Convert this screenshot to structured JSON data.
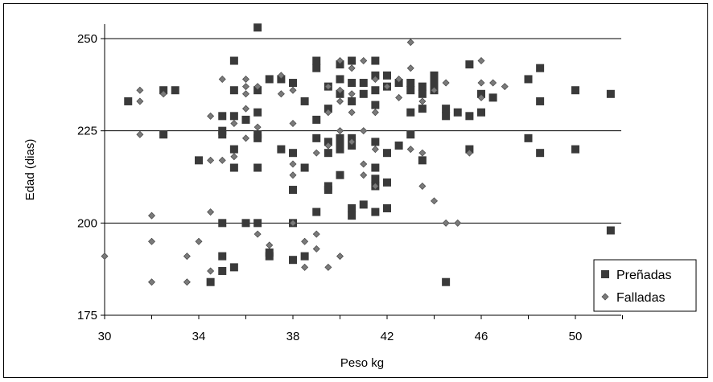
{
  "chart_data": {
    "type": "scatter",
    "title": "",
    "xlabel": "Peso kg",
    "ylabel": "Edad (dias)",
    "xlim": [
      30,
      52
    ],
    "ylim": [
      175,
      255
    ],
    "xticks": [
      30,
      34,
      38,
      42,
      46,
      50
    ],
    "yticks": [
      175,
      200,
      225,
      250
    ],
    "grid": "horizontal",
    "legend_position": "bottom-right",
    "series": [
      {
        "name": "Preñadas",
        "marker": "square",
        "color": "#3a3a3a",
        "points": [
          [
            31,
            233
          ],
          [
            32.5,
            236
          ],
          [
            33,
            236
          ],
          [
            32.5,
            224
          ],
          [
            34,
            217
          ],
          [
            34.5,
            184
          ],
          [
            35,
            229
          ],
          [
            35,
            225
          ],
          [
            35,
            224
          ],
          [
            35,
            200
          ],
          [
            35,
            191
          ],
          [
            35,
            187
          ],
          [
            35.5,
            244
          ],
          [
            35.5,
            236
          ],
          [
            35.5,
            229
          ],
          [
            35.5,
            220
          ],
          [
            35.5,
            215
          ],
          [
            35.5,
            188
          ],
          [
            36,
            228
          ],
          [
            36,
            200
          ],
          [
            36.5,
            253
          ],
          [
            36.5,
            236
          ],
          [
            36.5,
            230
          ],
          [
            36.5,
            224
          ],
          [
            36.5,
            223
          ],
          [
            36.5,
            215
          ],
          [
            36.5,
            200
          ],
          [
            37,
            239
          ],
          [
            37,
            192
          ],
          [
            37,
            191
          ],
          [
            37.5,
            239
          ],
          [
            37.5,
            220
          ],
          [
            38,
            238
          ],
          [
            38,
            219
          ],
          [
            38,
            209
          ],
          [
            38,
            200
          ],
          [
            38,
            190
          ],
          [
            38.5,
            233
          ],
          [
            38.5,
            215
          ],
          [
            38.5,
            191
          ],
          [
            39,
            244
          ],
          [
            39,
            242
          ],
          [
            39,
            228
          ],
          [
            39,
            223
          ],
          [
            39,
            203
          ],
          [
            39.5,
            237
          ],
          [
            39.5,
            231
          ],
          [
            39.5,
            222
          ],
          [
            39.5,
            219
          ],
          [
            39.5,
            210
          ],
          [
            39.5,
            209
          ],
          [
            40,
            243
          ],
          [
            40,
            239
          ],
          [
            40,
            235
          ],
          [
            40,
            223
          ],
          [
            40,
            222
          ],
          [
            40,
            220
          ],
          [
            40,
            213
          ],
          [
            40.5,
            244
          ],
          [
            40.5,
            238
          ],
          [
            40.5,
            233
          ],
          [
            40.5,
            223
          ],
          [
            40.5,
            221
          ],
          [
            40.5,
            204
          ],
          [
            40.5,
            202
          ],
          [
            41,
            238
          ],
          [
            41,
            235
          ],
          [
            41,
            205
          ],
          [
            41.5,
            244
          ],
          [
            41.5,
            240
          ],
          [
            41.5,
            236
          ],
          [
            41.5,
            232
          ],
          [
            41.5,
            222
          ],
          [
            41.5,
            215
          ],
          [
            41.5,
            212
          ],
          [
            41.5,
            210
          ],
          [
            41.5,
            203
          ],
          [
            42,
            240
          ],
          [
            42,
            237
          ],
          [
            42,
            219
          ],
          [
            42,
            211
          ],
          [
            42,
            204
          ],
          [
            42.5,
            238
          ],
          [
            42.5,
            221
          ],
          [
            43,
            238
          ],
          [
            43,
            236
          ],
          [
            43,
            230
          ],
          [
            43,
            224
          ],
          [
            43.5,
            237
          ],
          [
            43.5,
            235
          ],
          [
            43.5,
            231
          ],
          [
            43.5,
            217
          ],
          [
            44,
            240
          ],
          [
            44,
            238
          ],
          [
            44,
            236
          ],
          [
            44.5,
            231
          ],
          [
            44.5,
            229
          ],
          [
            44.5,
            184
          ],
          [
            45,
            230
          ],
          [
            45.5,
            243
          ],
          [
            45.5,
            229
          ],
          [
            45.5,
            220
          ],
          [
            46,
            235
          ],
          [
            46,
            230
          ],
          [
            46.5,
            234
          ],
          [
            48,
            239
          ],
          [
            48,
            223
          ],
          [
            48.5,
            242
          ],
          [
            48.5,
            233
          ],
          [
            48.5,
            219
          ],
          [
            50,
            236
          ],
          [
            50,
            220
          ],
          [
            51.5,
            235
          ],
          [
            51.5,
            198
          ]
        ]
      },
      {
        "name": "Falladas",
        "marker": "diamond",
        "color": "#7a7a7a",
        "points": [
          [
            30,
            191
          ],
          [
            31.5,
            236
          ],
          [
            31.5,
            233
          ],
          [
            31.5,
            224
          ],
          [
            32,
            202
          ],
          [
            32,
            195
          ],
          [
            32,
            184
          ],
          [
            32.5,
            235
          ],
          [
            33.5,
            191
          ],
          [
            33.5,
            184
          ],
          [
            34,
            195
          ],
          [
            34.5,
            229
          ],
          [
            34.5,
            217
          ],
          [
            34.5,
            203
          ],
          [
            34.5,
            187
          ],
          [
            35,
            239
          ],
          [
            35,
            217
          ],
          [
            35.5,
            227
          ],
          [
            35.5,
            218
          ],
          [
            36,
            239
          ],
          [
            36,
            237
          ],
          [
            36,
            235
          ],
          [
            36,
            231
          ],
          [
            36,
            223
          ],
          [
            36.5,
            237
          ],
          [
            36.5,
            226
          ],
          [
            36.5,
            197
          ],
          [
            37,
            194
          ],
          [
            37.5,
            240
          ],
          [
            37.5,
            235
          ],
          [
            38,
            236
          ],
          [
            38,
            227
          ],
          [
            38,
            216
          ],
          [
            38,
            213
          ],
          [
            38,
            200
          ],
          [
            38.5,
            195
          ],
          [
            38.5,
            188
          ],
          [
            39,
            219
          ],
          [
            39,
            197
          ],
          [
            39,
            193
          ],
          [
            39.5,
            237
          ],
          [
            39.5,
            230
          ],
          [
            39.5,
            221
          ],
          [
            39.5,
            188
          ],
          [
            40,
            244
          ],
          [
            40,
            236
          ],
          [
            40,
            233
          ],
          [
            40,
            225
          ],
          [
            40,
            191
          ],
          [
            40.5,
            242
          ],
          [
            40.5,
            235
          ],
          [
            40.5,
            230
          ],
          [
            40.5,
            222
          ],
          [
            41,
            244
          ],
          [
            41,
            225
          ],
          [
            41,
            216
          ],
          [
            41,
            213
          ],
          [
            41.5,
            239
          ],
          [
            41.5,
            230
          ],
          [
            41.5,
            220
          ],
          [
            41.5,
            210
          ],
          [
            42,
            237
          ],
          [
            42.5,
            239
          ],
          [
            42.5,
            234
          ],
          [
            43,
            249
          ],
          [
            43,
            242
          ],
          [
            43,
            220
          ],
          [
            43.5,
            233
          ],
          [
            43.5,
            219
          ],
          [
            43.5,
            210
          ],
          [
            44,
            236
          ],
          [
            44,
            206
          ],
          [
            44.5,
            238
          ],
          [
            44.5,
            200
          ],
          [
            45,
            200
          ],
          [
            45.5,
            219
          ],
          [
            46,
            244
          ],
          [
            46,
            238
          ],
          [
            46,
            234
          ],
          [
            46.5,
            238
          ],
          [
            47,
            237
          ]
        ]
      }
    ]
  }
}
